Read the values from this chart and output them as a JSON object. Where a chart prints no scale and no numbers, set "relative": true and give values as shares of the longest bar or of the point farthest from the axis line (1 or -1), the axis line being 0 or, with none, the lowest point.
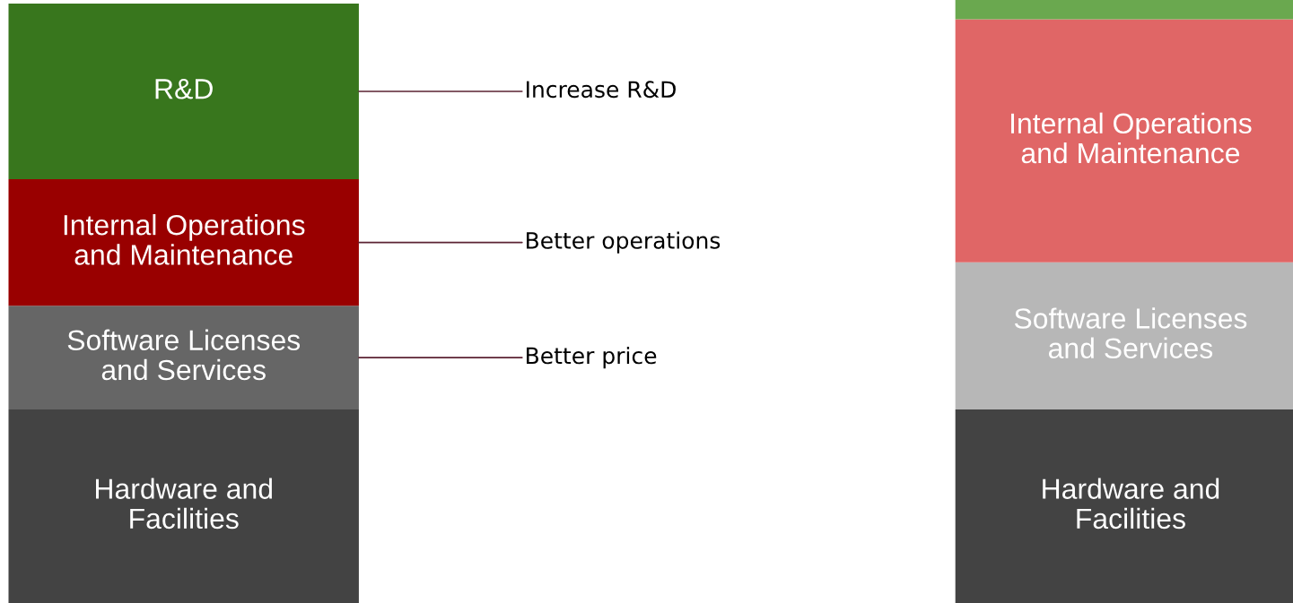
{
  "chart_data": {
    "type": "bar",
    "stacked": true,
    "relative": true,
    "legend": false,
    "categories": [
      null,
      null
    ],
    "series": [
      {
        "name": "Hardware and\nFacilities",
        "colors": [
          "#434343",
          "#434343"
        ],
        "values": [
          0.321,
          0.321
        ]
      },
      {
        "name": "Software Licenses\nand Services",
        "colors": [
          "#666666",
          "#b7b7b7"
        ],
        "values": [
          0.172,
          0.244
        ]
      },
      {
        "name": "Internal Operations\nand Maintenance",
        "colors": [
          "#990000",
          "#e06666"
        ],
        "values": [
          0.21,
          0.403
        ]
      },
      {
        "name": "R&D",
        "colors": [
          "#38761d",
          null
        ],
        "values": [
          0.291,
          null
        ]
      },
      {
        "colors": [
          null,
          "#6aa84f"
        ],
        "values": [
          null,
          0.032
        ]
      }
    ],
    "annotations": [
      "Increase R&D",
      "Better operations",
      "Better price"
    ]
  }
}
